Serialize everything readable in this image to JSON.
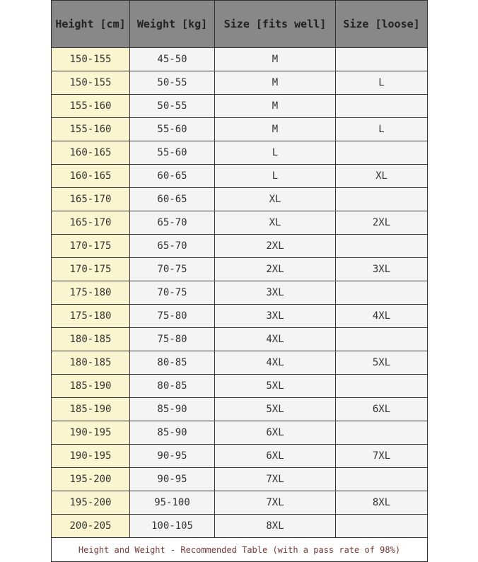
{
  "headers": [
    "Height [cm]",
    "Weight [kg]",
    "Size [fits well]",
    "Size [loose]"
  ],
  "rows": [
    [
      "150-155",
      "45-50",
      "M",
      ""
    ],
    [
      "150-155",
      "50-55",
      "M",
      "L"
    ],
    [
      "155-160",
      "50-55",
      "M",
      ""
    ],
    [
      "155-160",
      "55-60",
      "M",
      "L"
    ],
    [
      "160-165",
      "55-60",
      "L",
      ""
    ],
    [
      "160-165",
      "60-65",
      "L",
      "XL"
    ],
    [
      "165-170",
      "60-65",
      "XL",
      ""
    ],
    [
      "165-170",
      "65-70",
      "XL",
      "2XL"
    ],
    [
      "170-175",
      "65-70",
      "2XL",
      ""
    ],
    [
      "170-175",
      "70-75",
      "2XL",
      "3XL"
    ],
    [
      "175-180",
      "70-75",
      "3XL",
      ""
    ],
    [
      "175-180",
      "75-80",
      "3XL",
      "4XL"
    ],
    [
      "180-185",
      "75-80",
      "4XL",
      ""
    ],
    [
      "180-185",
      "80-85",
      "4XL",
      "5XL"
    ],
    [
      "185-190",
      "80-85",
      "5XL",
      ""
    ],
    [
      "185-190",
      "85-90",
      "5XL",
      "6XL"
    ],
    [
      "190-195",
      "85-90",
      "6XL",
      ""
    ],
    [
      "190-195",
      "90-95",
      "6XL",
      "7XL"
    ],
    [
      "195-200",
      "90-95",
      "7XL",
      ""
    ],
    [
      "195-200",
      "95-100",
      "7XL",
      "8XL"
    ],
    [
      "200-205",
      "100-105",
      "8XL",
      ""
    ]
  ],
  "footer": "Height and Weight - Recommended Table (with a pass rate of 98%)",
  "colors": {
    "header_bg": "#888888",
    "height_col_bg": "#fbf6cf",
    "cell_bg": "#f4f4f4",
    "footer_text": "#7a3a3a"
  }
}
